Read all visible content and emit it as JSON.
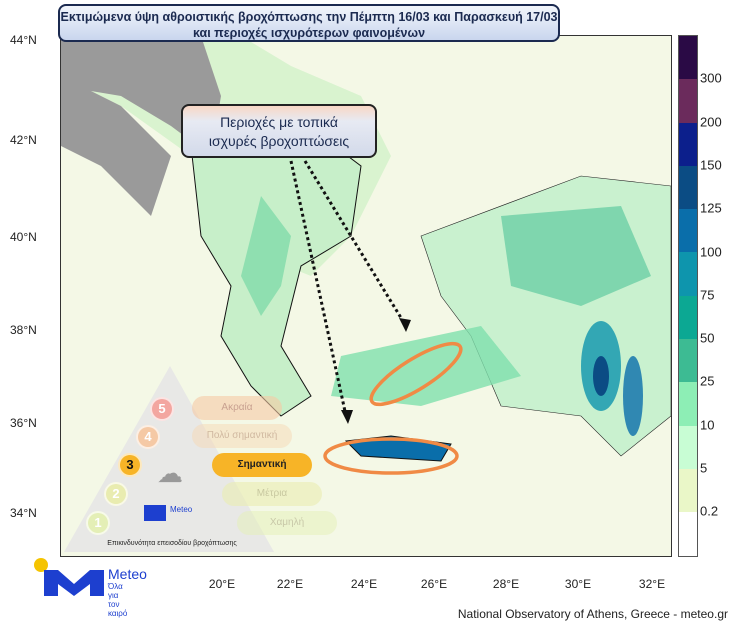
{
  "title": {
    "line1": "Εκτιμώμενα ύψη αθροιστικής βροχόπτωσης την Πέμπτη 16/03 και Παρασκευή 17/03",
    "line2": "και περιοχές ισχυρότερων φαινομένων"
  },
  "callout": {
    "line1": "Περιοχές με τοπικά",
    "line2": "ισχυρές βροχοπτώσεις"
  },
  "lat_labels": [
    "44°N",
    "42°N",
    "40°N",
    "38°N",
    "36°N",
    "34°N"
  ],
  "lon_labels": [
    "20°E",
    "22°E",
    "24°E",
    "26°E",
    "28°E",
    "30°E",
    "32°E"
  ],
  "colorbar": {
    "labels": [
      "300",
      "200",
      "150",
      "125",
      "100",
      "75",
      "50",
      "25",
      "10",
      "5",
      "0.2"
    ],
    "colors": [
      "#2a0a45",
      "#6b2b5c",
      "#0c1f8c",
      "#0b4c84",
      "#0a6eaa",
      "#0e95ad",
      "#0ca893",
      "#3dbb93",
      "#8deeb5",
      "#c8fdd4",
      "#eaf7c8",
      "#ffffff"
    ]
  },
  "hazard_scale": {
    "levels": [
      {
        "n": "5",
        "label": "Ακραία",
        "color": "#f3a6a0"
      },
      {
        "n": "4",
        "label": "Πολύ σημαντική",
        "color": "#f5c9a5"
      },
      {
        "n": "3",
        "label": "Σημαντική",
        "color": "#f7b427"
      },
      {
        "n": "2",
        "label": "Μέτρια",
        "color": "#e9ecb0"
      },
      {
        "n": "1",
        "label": "Χαμηλή",
        "color": "#e4efb6"
      }
    ],
    "caption": "Επικινδυνότητα επεισοδίου βροχόπτωσης",
    "logo_text": "Meteo",
    "logo_sub": "Όλα για τον καιρό"
  },
  "logo": {
    "name": "Meteo",
    "tagline1": "Όλα για",
    "tagline2": "τον καιρό",
    "colors": {
      "blue": "#1d3fcf",
      "yellow": "#f5c400"
    }
  },
  "credit": "National Observatory of Athens, Greece - meteo.gr",
  "highlight_color": "#f08a45"
}
